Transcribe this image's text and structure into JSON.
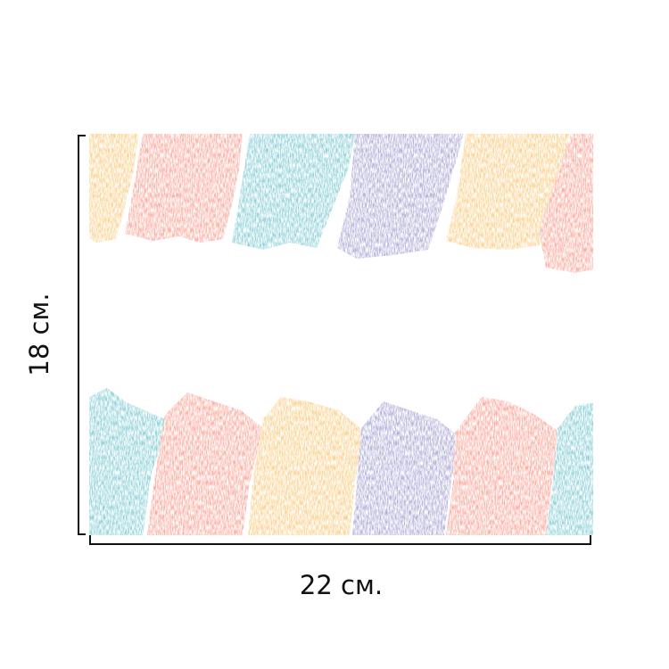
{
  "dimensions": {
    "width_label": "22 см.",
    "height_label": "18 см."
  },
  "palette": {
    "teal": "#8dd0d8",
    "coral": "#fbaa9e",
    "yellow": "#fbd08c",
    "lavender": "#b2aed8",
    "background": "#ffffff"
  },
  "top_stripes": [
    "yellow",
    "coral",
    "teal",
    "lavender",
    "yellow",
    "coral"
  ],
  "bottom_stripes": [
    "teal",
    "coral",
    "yellow",
    "lavender",
    "coral",
    "teal"
  ]
}
